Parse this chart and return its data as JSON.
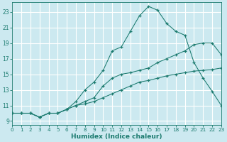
{
  "xlabel": "Humidex (Indice chaleur)",
  "bg_color": "#cce9f0",
  "grid_color": "#ffffff",
  "line_color": "#1a7a6e",
  "xlim": [
    0,
    23
  ],
  "ylim": [
    8.5,
    24.2
  ],
  "yticks": [
    9,
    11,
    13,
    15,
    17,
    19,
    21,
    23
  ],
  "xticks": [
    0,
    1,
    2,
    3,
    4,
    5,
    6,
    7,
    8,
    9,
    10,
    11,
    12,
    13,
    14,
    15,
    16,
    17,
    18,
    19,
    20,
    21,
    22,
    23
  ],
  "line1_x": [
    0,
    1,
    2,
    3,
    4,
    5,
    6,
    7,
    8,
    9,
    10,
    11,
    12,
    13,
    14,
    15,
    16,
    17,
    18,
    19,
    20,
    21,
    22,
    23
  ],
  "line1_y": [
    10,
    10,
    10,
    9.5,
    10,
    10,
    10.5,
    11,
    11.2,
    11.5,
    12,
    12.5,
    13,
    13.5,
    14,
    14.2,
    14.5,
    14.8,
    15,
    15.2,
    15.4,
    15.5,
    15.6,
    15.8
  ],
  "line2_x": [
    0,
    1,
    2,
    3,
    4,
    5,
    6,
    7,
    8,
    9,
    10,
    11,
    12,
    13,
    14,
    15,
    16,
    17,
    18,
    19,
    20,
    21,
    22,
    23
  ],
  "line2_y": [
    10,
    10,
    10,
    9.5,
    10,
    10,
    10.5,
    11,
    11.5,
    12,
    13.5,
    14.5,
    15,
    15.2,
    15.5,
    15.8,
    16.5,
    17,
    17.5,
    18,
    18.8,
    19,
    19,
    17.5
  ],
  "line3_x": [
    0,
    1,
    2,
    3,
    4,
    5,
    6,
    7,
    8,
    9,
    10,
    11,
    12,
    13,
    14,
    15,
    16,
    17,
    18,
    19,
    20,
    21,
    22,
    23
  ],
  "line3_y": [
    10,
    10,
    10,
    9.5,
    10,
    10,
    10.5,
    11.5,
    13,
    14,
    15.5,
    18,
    18.5,
    20.5,
    22.5,
    23.7,
    23.2,
    21.5,
    20.5,
    20,
    16.5,
    14.5,
    12.8,
    11
  ]
}
